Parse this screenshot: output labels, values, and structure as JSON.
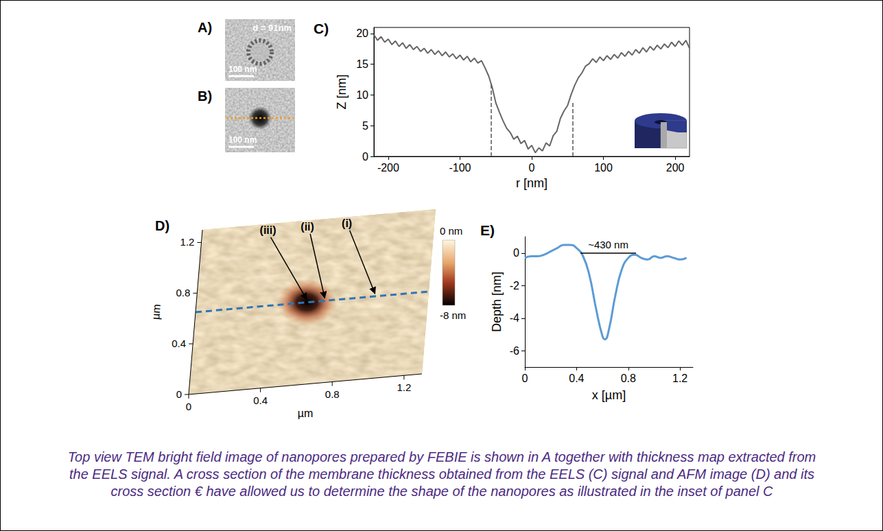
{
  "caption": "Top view TEM bright field image of nanopores prepared by FEBIE is shown in A together with thickness map extracted from the EELS signal. A cross section of the membrane thickness obtained from the EELS (C) signal and AFM image (D) and its cross section € have allowed us to determine the shape of the nanopores as illustrated in the inset of panel C",
  "panels": {
    "A": {
      "label": "A)",
      "annotation": "d = 91nm",
      "scale_bar": "100 nm"
    },
    "B": {
      "label": "B)",
      "scale_bar": "100 nm"
    },
    "D": {
      "label": "D)",
      "xlabel": "µm",
      "ylabel": "µm",
      "xlim": [
        0,
        1.3
      ],
      "ylim": [
        0,
        1.3
      ],
      "xticks": [
        0,
        0.4,
        0.8,
        1.2
      ],
      "yticks": [
        0,
        0.4,
        0.8,
        1.2
      ],
      "colorbar": {
        "range": [
          -8,
          0
        ],
        "ticks": [
          {
            "value": 0,
            "label": "0 nm"
          },
          {
            "value": -8,
            "label": "-8 nm"
          }
        ]
      },
      "pit": {
        "x": 0.62,
        "y": 0.65
      },
      "profile_y": 0.65,
      "markers": [
        {
          "label": "(iii)",
          "x": 0.62
        },
        {
          "label": "(ii)",
          "x": 0.72
        },
        {
          "label": "(i)",
          "x": 1.0
        }
      ]
    }
  },
  "chart_data": [
    {
      "type": "line",
      "title": "C)",
      "xlabel": "r [nm]",
      "ylabel": "Z [nm]",
      "color": "#666666",
      "grid": false,
      "xlim": [
        -220,
        220
      ],
      "ylim": [
        0,
        21
      ],
      "xticks": [
        -200,
        -100,
        0,
        100,
        200
      ],
      "yticks": [
        0,
        5,
        10,
        15,
        20
      ],
      "x": [
        -220,
        -215,
        -210,
        -205,
        -200,
        -195,
        -190,
        -185,
        -180,
        -175,
        -170,
        -165,
        -160,
        -155,
        -150,
        -145,
        -140,
        -135,
        -130,
        -125,
        -120,
        -115,
        -110,
        -105,
        -100,
        -95,
        -90,
        -85,
        -80,
        -75,
        -70,
        -65,
        -60,
        -55,
        -50,
        -45,
        -40,
        -35,
        -30,
        -25,
        -20,
        -15,
        -10,
        -5,
        0,
        5,
        10,
        15,
        20,
        25,
        30,
        35,
        40,
        45,
        50,
        55,
        60,
        65,
        70,
        75,
        80,
        85,
        90,
        95,
        100,
        105,
        110,
        115,
        120,
        125,
        130,
        135,
        140,
        145,
        150,
        155,
        160,
        165,
        170,
        175,
        180,
        185,
        190,
        195,
        200,
        205,
        210,
        215,
        220
      ],
      "values": [
        19.8,
        18.9,
        19.5,
        18.6,
        19.1,
        18.2,
        18.8,
        17.9,
        18.5,
        17.6,
        18.2,
        17.4,
        17.9,
        17.1,
        17.6,
        16.8,
        17.4,
        16.6,
        17.2,
        16.4,
        17.0,
        16.2,
        16.7,
        15.9,
        16.5,
        15.7,
        16.3,
        15.4,
        16.0,
        15.2,
        15.6,
        14.4,
        13.1,
        11.2,
        8.7,
        7.2,
        5.8,
        4.6,
        3.9,
        2.8,
        3.3,
        2.1,
        2.6,
        1.2,
        1.8,
        0.6,
        1.4,
        0.9,
        2.2,
        1.7,
        3.4,
        4.1,
        6.2,
        7.4,
        8.3,
        10.1,
        11.6,
        12.8,
        13.6,
        14.7,
        15.1,
        15.9,
        15.3,
        16.2,
        15.6,
        16.4,
        15.8,
        16.6,
        16.0,
        16.9,
        16.3,
        17.1,
        16.5,
        17.4,
        16.8,
        17.7,
        17.0,
        17.9,
        17.3,
        18.1,
        17.5,
        18.3,
        17.7,
        18.6,
        17.9,
        18.8,
        18.1,
        18.9,
        17.6
      ],
      "guides": [
        {
          "x": -57,
          "y": [
            0,
            12
          ]
        },
        {
          "x": 57,
          "y": [
            0,
            9
          ]
        }
      ]
    },
    {
      "type": "line",
      "title": "E)",
      "xlabel": "x [µm]",
      "ylabel": "Depth [nm]",
      "color": "#5b9bd5",
      "grid": false,
      "xlim": [
        0,
        1.3
      ],
      "ylim": [
        -7,
        1
      ],
      "xticks": [
        0,
        0.4,
        0.8,
        1.2
      ],
      "yticks": [
        0,
        -2,
        -4,
        -6
      ],
      "x": [
        0,
        0.05,
        0.1,
        0.15,
        0.2,
        0.25,
        0.3,
        0.35,
        0.4,
        0.45,
        0.5,
        0.55,
        0.6,
        0.62,
        0.65,
        0.7,
        0.75,
        0.8,
        0.85,
        0.9,
        0.95,
        1.0,
        1.05,
        1.1,
        1.15,
        1.2,
        1.25
      ],
      "values": [
        -0.3,
        -0.2,
        -0.2,
        -0.1,
        0.1,
        0.3,
        0.5,
        0.5,
        0.3,
        -0.2,
        -1.4,
        -3.4,
        -5.1,
        -5.3,
        -4.7,
        -2.6,
        -1.0,
        -0.3,
        -0.1,
        -0.3,
        -0.4,
        -0.2,
        -0.3,
        -0.2,
        -0.3,
        -0.4,
        -0.3
      ],
      "annotations": [
        {
          "text": "~430 nm",
          "x": [
            0.43,
            0.86
          ],
          "y": 0
        }
      ]
    }
  ]
}
